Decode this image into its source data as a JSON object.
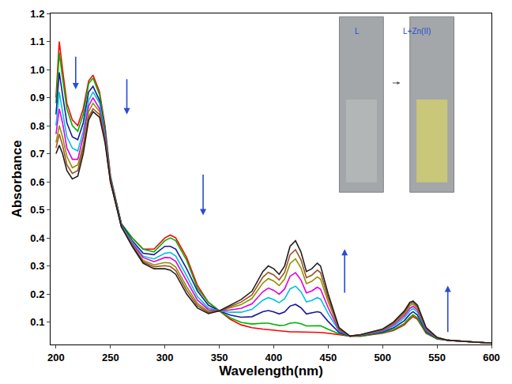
{
  "chart_data": {
    "type": "line",
    "x_label": "Wavelength(nm)",
    "y_label": "Absorbance",
    "xlim": [
      195,
      600
    ],
    "xticks": [
      200,
      250,
      300,
      350,
      400,
      450,
      500,
      550,
      600
    ],
    "ylim": [
      0.02,
      1.2
    ],
    "yticks": [
      0.1,
      0.2,
      0.3,
      0.4,
      0.5,
      0.6,
      0.7,
      0.8,
      0.9,
      {
        "value": 1.0,
        "label": "1.0"
      },
      1.1,
      1.2
    ],
    "grid": false,
    "annotations": [
      {
        "text": "L"
      },
      {
        "text": "L+Zn(II)"
      }
    ],
    "x": [
      200,
      203,
      206,
      210,
      215,
      220,
      225,
      230,
      234,
      240,
      245,
      250,
      260,
      270,
      280,
      290,
      300,
      305,
      310,
      320,
      330,
      340,
      350,
      360,
      370,
      380,
      390,
      395,
      400,
      405,
      410,
      415,
      420,
      425,
      430,
      435,
      440,
      443,
      450,
      460,
      470,
      480,
      490,
      500,
      510,
      520,
      525,
      528,
      532,
      540,
      550,
      560,
      580,
      600
    ],
    "series": [
      {
        "color": "#ff0000",
        "values": [
          0.9,
          1.1,
          1.0,
          0.88,
          0.82,
          0.8,
          0.86,
          0.96,
          0.98,
          0.92,
          0.8,
          0.62,
          0.45,
          0.4,
          0.36,
          0.36,
          0.4,
          0.41,
          0.4,
          0.33,
          0.23,
          0.17,
          0.14,
          0.11,
          0.09,
          0.08,
          0.075,
          0.073,
          0.07,
          0.068,
          0.066,
          0.065,
          0.065,
          0.065,
          0.064,
          0.064,
          0.063,
          0.063,
          0.06,
          0.055,
          0.05,
          0.05,
          0.055,
          0.06,
          0.07,
          0.09,
          0.11,
          0.12,
          0.11,
          0.06,
          0.04,
          0.035,
          0.03,
          0.025
        ]
      },
      {
        "color": "#00b000",
        "values": [
          0.88,
          1.06,
          0.97,
          0.86,
          0.8,
          0.78,
          0.84,
          0.95,
          0.97,
          0.91,
          0.79,
          0.62,
          0.45,
          0.4,
          0.36,
          0.35,
          0.39,
          0.4,
          0.39,
          0.32,
          0.22,
          0.17,
          0.14,
          0.115,
          0.099,
          0.093,
          0.096,
          0.096,
          0.092,
          0.088,
          0.089,
          0.096,
          0.098,
          0.094,
          0.086,
          0.087,
          0.088,
          0.087,
          0.074,
          0.058,
          0.05,
          0.05,
          0.056,
          0.062,
          0.073,
          0.095,
          0.116,
          0.126,
          0.115,
          0.062,
          0.04,
          0.035,
          0.03,
          0.025
        ]
      },
      {
        "color": "#1a1a9a",
        "values": [
          0.84,
          0.99,
          0.91,
          0.81,
          0.76,
          0.75,
          0.81,
          0.92,
          0.94,
          0.89,
          0.78,
          0.61,
          0.45,
          0.39,
          0.345,
          0.34,
          0.37,
          0.37,
          0.36,
          0.29,
          0.21,
          0.16,
          0.14,
          0.125,
          0.117,
          0.119,
          0.137,
          0.141,
          0.136,
          0.129,
          0.136,
          0.157,
          0.163,
          0.151,
          0.129,
          0.132,
          0.137,
          0.134,
          0.102,
          0.063,
          0.05,
          0.052,
          0.058,
          0.065,
          0.079,
          0.105,
          0.128,
          0.137,
          0.125,
          0.066,
          0.042,
          0.035,
          0.03,
          0.025
        ]
      },
      {
        "color": "#00c0e0",
        "values": [
          0.8,
          0.92,
          0.85,
          0.76,
          0.72,
          0.71,
          0.78,
          0.89,
          0.92,
          0.88,
          0.77,
          0.61,
          0.445,
          0.385,
          0.335,
          0.325,
          0.345,
          0.348,
          0.335,
          0.265,
          0.19,
          0.15,
          0.14,
          0.135,
          0.135,
          0.145,
          0.178,
          0.187,
          0.18,
          0.169,
          0.183,
          0.218,
          0.228,
          0.208,
          0.172,
          0.177,
          0.187,
          0.182,
          0.13,
          0.068,
          0.05,
          0.053,
          0.06,
          0.068,
          0.085,
          0.115,
          0.14,
          0.148,
          0.135,
          0.07,
          0.043,
          0.035,
          0.03,
          0.025
        ]
      },
      {
        "color": "#e000e0",
        "values": [
          0.77,
          0.86,
          0.81,
          0.72,
          0.68,
          0.68,
          0.76,
          0.87,
          0.9,
          0.86,
          0.76,
          0.61,
          0.44,
          0.38,
          0.33,
          0.315,
          0.33,
          0.329,
          0.316,
          0.245,
          0.178,
          0.144,
          0.14,
          0.143,
          0.149,
          0.165,
          0.208,
          0.221,
          0.213,
          0.199,
          0.218,
          0.263,
          0.276,
          0.25,
          0.204,
          0.211,
          0.224,
          0.217,
          0.151,
          0.071,
          0.05,
          0.053,
          0.062,
          0.07,
          0.09,
          0.123,
          0.149,
          0.156,
          0.143,
          0.073,
          0.043,
          0.035,
          0.03,
          0.025
        ]
      },
      {
        "color": "#909000",
        "values": [
          0.74,
          0.8,
          0.76,
          0.69,
          0.65,
          0.66,
          0.73,
          0.85,
          0.88,
          0.85,
          0.75,
          0.6,
          0.442,
          0.376,
          0.32,
          0.304,
          0.312,
          0.31,
          0.296,
          0.226,
          0.166,
          0.138,
          0.14,
          0.15,
          0.162,
          0.184,
          0.239,
          0.255,
          0.246,
          0.23,
          0.253,
          0.309,
          0.325,
          0.293,
          0.237,
          0.245,
          0.261,
          0.253,
          0.172,
          0.075,
          0.05,
          0.054,
          0.063,
          0.072,
          0.094,
          0.13,
          0.158,
          0.164,
          0.15,
          0.076,
          0.044,
          0.035,
          0.03,
          0.025
        ]
      },
      {
        "color": "#a05020",
        "values": [
          0.72,
          0.77,
          0.73,
          0.66,
          0.63,
          0.64,
          0.72,
          0.83,
          0.86,
          0.84,
          0.75,
          0.6,
          0.441,
          0.373,
          0.315,
          0.297,
          0.301,
          0.298,
          0.283,
          0.213,
          0.158,
          0.134,
          0.14,
          0.155,
          0.171,
          0.197,
          0.26,
          0.277,
          0.268,
          0.25,
          0.277,
          0.34,
          0.358,
          0.322,
          0.258,
          0.267,
          0.285,
          0.276,
          0.186,
          0.078,
          0.05,
          0.055,
          0.064,
          0.074,
          0.097,
          0.135,
          0.164,
          0.17,
          0.155,
          0.078,
          0.045,
          0.035,
          0.03,
          0.025
        ]
      },
      {
        "color": "#202020",
        "values": [
          0.7,
          0.73,
          0.7,
          0.64,
          0.61,
          0.62,
          0.7,
          0.82,
          0.85,
          0.83,
          0.74,
          0.6,
          0.44,
          0.37,
          0.31,
          0.29,
          0.29,
          0.285,
          0.27,
          0.2,
          0.15,
          0.13,
          0.14,
          0.16,
          0.18,
          0.21,
          0.28,
          0.3,
          0.29,
          0.27,
          0.3,
          0.37,
          0.39,
          0.35,
          0.28,
          0.29,
          0.31,
          0.3,
          0.2,
          0.08,
          0.05,
          0.055,
          0.065,
          0.075,
          0.1,
          0.14,
          0.17,
          0.175,
          0.16,
          0.08,
          0.045,
          0.035,
          0.03,
          0.025
        ]
      }
    ]
  }
}
